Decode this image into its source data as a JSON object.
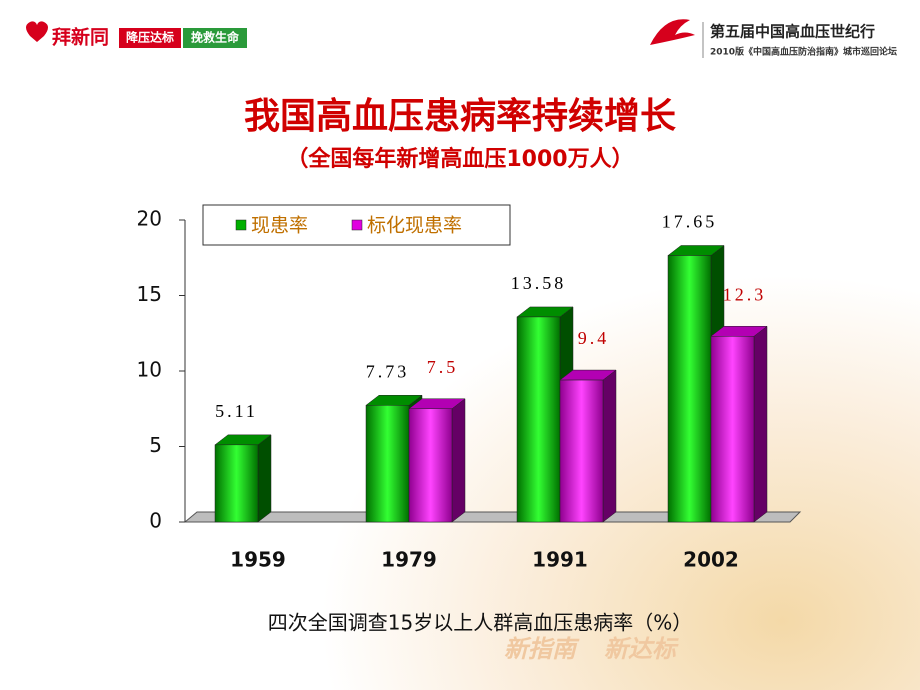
{
  "header": {
    "brand": "拜新同",
    "slogan_1": "降压达标",
    "slogan_2": "挽救生命",
    "event": "第五届中国高血压世纪行",
    "event_sub": "2010版《中国高血压防治指南》城市巡回论坛"
  },
  "watermark": [
    "新指南",
    "新达标"
  ],
  "chart_data": {
    "type": "bar3d",
    "title": "我国高血压患病率持续增长",
    "subtitle": "（全国每年新增高血压1000万人）",
    "x_label": "四次全国调查15岁以上人群高血压患病率（%）",
    "categories": [
      "1959",
      "1979",
      "1991",
      "2002"
    ],
    "series": [
      {
        "name": "现患率",
        "color": "#00b000",
        "label_color": "#000000",
        "values": [
          5.11,
          7.73,
          13.58,
          17.65
        ]
      },
      {
        "name": "标化现患率",
        "color": "#e000e0",
        "label_color": "#c00000",
        "values": [
          null,
          7.5,
          9.4,
          12.3
        ]
      }
    ],
    "ylim": [
      0,
      20
    ],
    "yticks": [
      0,
      5,
      10,
      15,
      20
    ],
    "grid": false,
    "legend": "top-left"
  }
}
